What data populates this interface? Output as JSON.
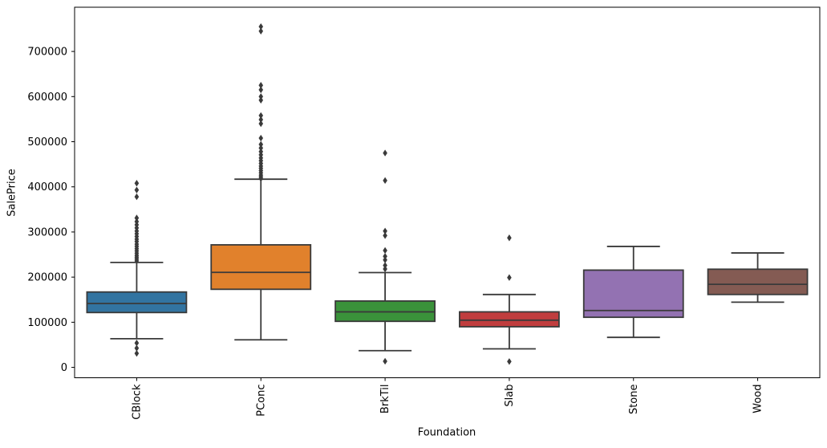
{
  "chart_data": {
    "type": "boxplot",
    "title": "",
    "xlabel": "Foundation",
    "ylabel": "SalePrice",
    "categories": [
      "CBlock",
      "PConc",
      "BrkTil",
      "Slab",
      "Stone",
      "Wood"
    ],
    "y_ticks": [
      0,
      100000,
      200000,
      300000,
      400000,
      500000,
      600000,
      700000
    ],
    "ylim": [
      -23000,
      798000
    ],
    "grid": false,
    "legend": "none",
    "background": "#ffffff",
    "spine_color": "#000000",
    "line_color": "#3a3a3a",
    "palette": [
      "#3274a1",
      "#e1812c",
      "#3a923a",
      "#c03d3e",
      "#9372b2",
      "#845b53"
    ],
    "boxes": [
      {
        "label": "CBlock",
        "color": "#3274a1",
        "whisker_low": 63500,
        "q1": 121500,
        "median": 141500,
        "q3": 167000,
        "whisker_high": 232500,
        "outliers": [
          408000,
          393000,
          378000,
          331000,
          323000,
          316000,
          309000,
          302000,
          296000,
          290000,
          284000,
          279000,
          273000,
          268000,
          263000,
          258000,
          253000,
          248000,
          244000,
          240000,
          236000,
          54000,
          42500,
          31000
        ]
      },
      {
        "label": "PConc",
        "color": "#e1812c",
        "whisker_low": 61000,
        "q1": 173000,
        "median": 210500,
        "q3": 271500,
        "whisker_high": 417000,
        "outliers": [
          755000,
          745000,
          625000,
          615000,
          600000,
          592000,
          558000,
          549000,
          540000,
          508000,
          494000,
          486000,
          478000,
          471000,
          464000,
          458000,
          452000,
          446000,
          441000,
          436000,
          431000,
          426000,
          422000,
          418500
        ]
      },
      {
        "label": "BrkTil",
        "color": "#3a923a",
        "whisker_low": 37000,
        "q1": 102000,
        "median": 123000,
        "q3": 147000,
        "whisker_high": 210000,
        "outliers": [
          475000,
          414000,
          302000,
          292000,
          259000,
          246000,
          238000,
          226000,
          218000,
          13500
        ]
      },
      {
        "label": "Slab",
        "color": "#c03d3e",
        "whisker_low": 41000,
        "q1": 90000,
        "median": 104500,
        "q3": 123000,
        "whisker_high": 161500,
        "outliers": [
          287000,
          199000,
          13000
        ]
      },
      {
        "label": "Stone",
        "color": "#9372b2",
        "whisker_low": 66500,
        "q1": 111000,
        "median": 126000,
        "q3": 215500,
        "whisker_high": 268000,
        "outliers": []
      },
      {
        "label": "Wood",
        "color": "#845b53",
        "whisker_low": 144500,
        "q1": 161500,
        "median": 184000,
        "q3": 217500,
        "whisker_high": 253500,
        "outliers": []
      }
    ]
  }
}
